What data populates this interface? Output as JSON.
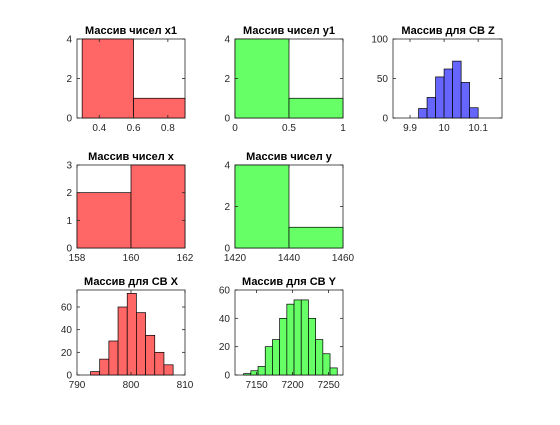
{
  "colors": {
    "red": "#ff6666",
    "green": "#66ff66",
    "blue": "#6666ff",
    "axis": "#262626"
  },
  "chart_data": [
    {
      "type": "bar",
      "title": "Массив чисел x1",
      "color": "red",
      "bins": [
        [
          0.3,
          0.6
        ],
        [
          0.6,
          0.9
        ]
      ],
      "values": [
        4,
        1
      ],
      "xlim": [
        0.27,
        0.9
      ],
      "ylim": [
        0,
        4
      ],
      "xticks": [
        0.4,
        0.6,
        0.8
      ],
      "yticks": [
        0,
        2,
        4
      ],
      "xticklabels": [
        "0.4",
        "0.6",
        "0.8"
      ],
      "yticklabels": [
        "0",
        "2",
        "4"
      ]
    },
    {
      "type": "bar",
      "title": "Массив чисел y1",
      "color": "green",
      "bins": [
        [
          0,
          0.5
        ],
        [
          0.5,
          1
        ]
      ],
      "values": [
        4,
        1
      ],
      "xlim": [
        0,
        1
      ],
      "ylim": [
        0,
        4
      ],
      "xticks": [
        0,
        0.5,
        1
      ],
      "yticks": [
        0,
        2,
        4
      ],
      "xticklabels": [
        "0",
        "0.5",
        "1"
      ],
      "yticklabels": [
        "0",
        "2",
        "4"
      ]
    },
    {
      "type": "bar",
      "title": "Массив для СВ Z",
      "color": "blue",
      "bins": [
        [
          9.925,
          9.95
        ],
        [
          9.95,
          9.975
        ],
        [
          9.975,
          10.0
        ],
        [
          10.0,
          10.025
        ],
        [
          10.025,
          10.05
        ],
        [
          10.05,
          10.075
        ],
        [
          10.075,
          10.1
        ]
      ],
      "values": [
        12,
        26,
        52,
        62,
        72,
        45,
        13
      ],
      "xlim": [
        9.85,
        10.17
      ],
      "ylim": [
        0,
        100
      ],
      "xticks": [
        9.9,
        10,
        10.1
      ],
      "yticks": [
        0,
        50,
        100
      ],
      "xticklabels": [
        "9.9",
        "10",
        "10.1"
      ],
      "yticklabels": [
        "0",
        "50",
        "100"
      ]
    },
    {
      "type": "bar",
      "title": "Массив чисел x",
      "color": "red",
      "bins": [
        [
          158,
          160
        ],
        [
          160,
          162
        ]
      ],
      "values": [
        2,
        3
      ],
      "xlim": [
        158,
        162
      ],
      "ylim": [
        0,
        3
      ],
      "xticks": [
        158,
        160,
        162
      ],
      "yticks": [
        0,
        1,
        2,
        3
      ],
      "xticklabels": [
        "158",
        "160",
        "162"
      ],
      "yticklabels": [
        "0",
        "1",
        "2",
        "3"
      ]
    },
    {
      "type": "bar",
      "title": "Массив чисел y",
      "color": "green",
      "bins": [
        [
          1420,
          1440
        ],
        [
          1440,
          1460
        ]
      ],
      "values": [
        4,
        1
      ],
      "xlim": [
        1420,
        1460
      ],
      "ylim": [
        0,
        4
      ],
      "xticks": [
        1420,
        1440,
        1460
      ],
      "yticks": [
        0,
        2,
        4
      ],
      "xticklabels": [
        "1420",
        "1440",
        "1460"
      ],
      "yticklabels": [
        "0",
        "2",
        "4"
      ]
    },
    {
      "type": "bar",
      "title": "Массив для СВ X",
      "color": "red",
      "bins": [
        [
          792.5,
          794.2
        ],
        [
          794.2,
          795.9
        ],
        [
          795.9,
          797.6
        ],
        [
          797.6,
          799.3
        ],
        [
          799.3,
          801.0
        ],
        [
          801.0,
          802.7
        ],
        [
          802.7,
          804.4
        ],
        [
          804.4,
          806.1
        ],
        [
          806.1,
          807.8
        ]
      ],
      "values": [
        3,
        14,
        30,
        60,
        72,
        55,
        35,
        20,
        9
      ],
      "xlim": [
        790,
        810
      ],
      "ylim": [
        0,
        75
      ],
      "xticks": [
        790,
        800,
        810
      ],
      "yticks": [
        0,
        20,
        40,
        60
      ],
      "xticklabels": [
        "790",
        "800",
        "810"
      ],
      "yticklabels": [
        "0",
        "20",
        "40",
        "60"
      ]
    },
    {
      "type": "bar",
      "title": "Массив для СВ Y",
      "color": "green",
      "bins": [
        [
          7132,
          7142
        ],
        [
          7142,
          7152
        ],
        [
          7152,
          7162
        ],
        [
          7162,
          7172
        ],
        [
          7172,
          7182
        ],
        [
          7182,
          7192
        ],
        [
          7192,
          7202
        ],
        [
          7202,
          7212
        ],
        [
          7212,
          7222
        ],
        [
          7222,
          7232
        ],
        [
          7232,
          7242
        ],
        [
          7242,
          7252
        ],
        [
          7252,
          7262
        ]
      ],
      "values": [
        1,
        3,
        6,
        20,
        25,
        40,
        50,
        53,
        53,
        40,
        25,
        15,
        5
      ],
      "xlim": [
        7120,
        7270
      ],
      "ylim": [
        0,
        60
      ],
      "xticks": [
        7150,
        7200,
        7250
      ],
      "yticks": [
        0,
        20,
        40,
        60
      ],
      "xticklabels": [
        "7150",
        "7200",
        "7250"
      ],
      "yticklabels": [
        "0",
        "20",
        "40",
        "60"
      ]
    }
  ]
}
